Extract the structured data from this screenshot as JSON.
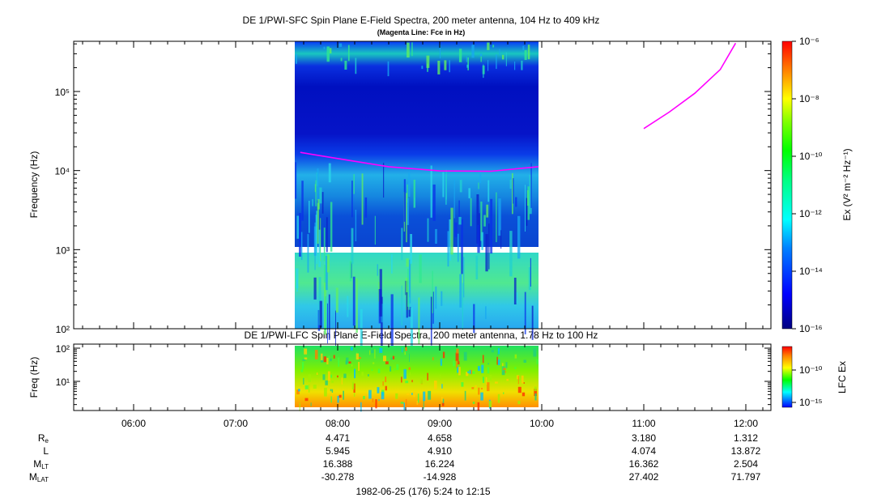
{
  "titles": {
    "sfc_title": "DE 1/PWI-SFC  Spin Plane E-Field Spectra, 200 meter antenna, 104 Hz to 409 kHz",
    "sfc_subtitle": "(Magenta Line: Fce in Hz)",
    "lfc_title": "DE 1/PWI-LFC  Spin Plane E-Field Spectra, 200 meter antenna, 1.78 Hz to 100 Hz"
  },
  "axes": {
    "sfc_ylabel": "Frequency (Hz)",
    "lfc_ylabel": "Freq (Hz)",
    "sfc_colorbar_label": "Ex (V² m⁻² Hz⁻¹)",
    "lfc_colorbar_label": "LFC Ex",
    "x_tick_labels": [
      "06:00",
      "07:00",
      "08:00",
      "09:00",
      "10:00",
      "11:00",
      "12:00"
    ],
    "sfc_y_tick_labels": [
      "10²",
      "10³",
      "10⁴",
      "10⁵"
    ],
    "lfc_y_tick_labels": [
      "10¹",
      "10²"
    ],
    "sfc_colorbar_ticks": [
      "10⁻¹⁶",
      "10⁻¹⁴",
      "10⁻¹²",
      "10⁻¹⁰",
      "10⁻⁸",
      "10⁻⁶"
    ],
    "lfc_colorbar_ticks": [
      "10⁻¹⁵",
      "10⁻¹⁰"
    ]
  },
  "ephemeris": {
    "row_labels": [
      "R_e",
      "L",
      "M_LT",
      "M_LAT"
    ],
    "columns": [
      {
        "time": "08:00",
        "values": [
          "4.471",
          "5.945",
          "16.388",
          "-30.278"
        ]
      },
      {
        "time": "09:00",
        "values": [
          "4.658",
          "4.910",
          "16.224",
          "-14.928"
        ]
      },
      {
        "time": "11:00",
        "values": [
          "3.180",
          "4.074",
          "16.362",
          "27.402"
        ]
      },
      {
        "time": "12:00",
        "values": [
          "1.312",
          "13.872",
          "2.504",
          "71.797"
        ]
      }
    ],
    "date_range": "1982-06-25 (176) 5:24 to 12:15"
  },
  "chart_data": [
    {
      "type": "heatmap",
      "panel": "SFC",
      "title": "DE 1/PWI-SFC  Spin Plane E-Field Spectra, 200 meter antenna, 104 Hz to 409 kHz",
      "subtitle": "(Magenta Line: Fce in Hz)",
      "ylabel": "Frequency (Hz)",
      "yscale": "log",
      "x_range": [
        "05:24",
        "12:15"
      ],
      "ylim": [
        100,
        409000
      ],
      "colorbar": {
        "label": "Ex (V² m⁻² Hz⁻¹)",
        "scale": "log",
        "range": [
          1e-16,
          1e-06
        ]
      },
      "data_interval": [
        "07:38",
        "09:58"
      ],
      "data_gap_hz": [
        900,
        1070
      ],
      "fce_line": {
        "color": "#ff00ff",
        "segments": [
          {
            "x": [
              "07:38",
              "08:00",
              "08:30",
              "09:00",
              "09:30",
              "09:58"
            ],
            "y": [
              17000,
              14200,
              11200,
              9900,
              9800,
              11200
            ]
          },
          {
            "x": [
              "11:00",
              "11:15",
              "11:30",
              "11:45",
              "11:54"
            ],
            "y": [
              34000,
              55000,
              95000,
              190000,
              409000
            ]
          }
        ]
      }
    },
    {
      "type": "heatmap",
      "panel": "LFC",
      "title": "DE 1/PWI-LFC  Spin Plane E-Field Spectra, 200 meter antenna, 1.78 Hz to 100 Hz",
      "ylabel": "Freq (Hz)",
      "yscale": "log",
      "x_range": [
        "05:24",
        "12:15"
      ],
      "ylim": [
        1.78,
        100
      ],
      "colorbar": {
        "label": "LFC Ex",
        "scale": "log",
        "range": [
          1e-17,
          1e-08
        ]
      },
      "data_interval": [
        "07:38",
        "09:58"
      ]
    }
  ]
}
